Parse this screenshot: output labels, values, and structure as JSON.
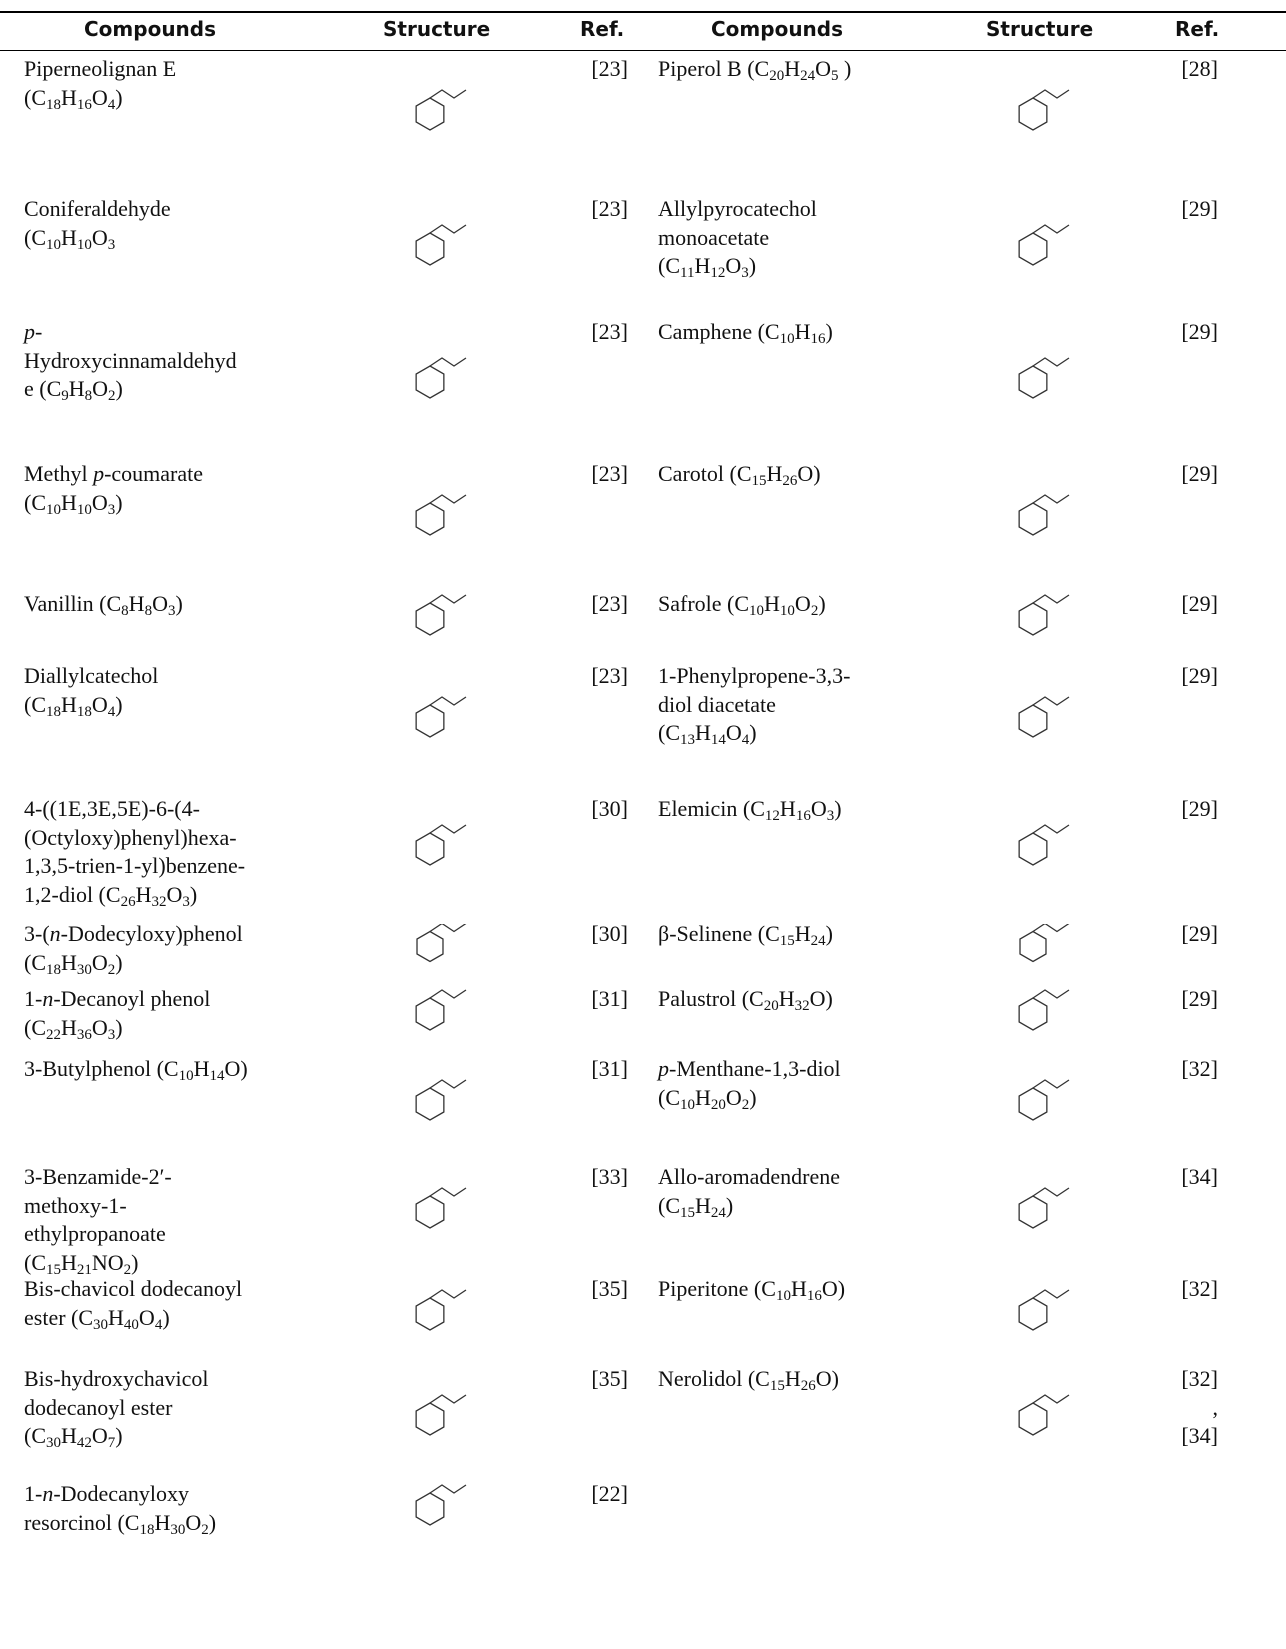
{
  "table": {
    "header": [
      "Compounds",
      "Structure",
      "Ref.",
      "Compounds",
      "Structure",
      "Ref."
    ],
    "rows": [
      [
        "Piperneolignan E\n(C18H16O4)",
        "[23]",
        "Piperol B (C20H24O5 )",
        "[28]"
      ],
      [
        "Coniferaldehyde\n(C10H10O3",
        "[23]",
        "Allylpyrocatechol\nmonoacetate\n(C11H12O3)",
        "[29]"
      ],
      [
        "p-\nHydroxycinnamaldehyd\ne (C9H8O2)",
        "[23]",
        "Camphene (C10H16)",
        "[29]"
      ],
      [
        "Methyl p-coumarate\n(C10H10O3)",
        "[23]",
        "Carotol (C15H26O)",
        "[29]"
      ],
      [
        "Vanillin (C8H8O3)",
        "[23]",
        "Safrole (C10H10O2)",
        "[29]"
      ],
      [
        "Diallylcatechol\n(C18H18O4)",
        "[23]",
        "1-Phenylpropene-3,3-\ndiol diacetate\n(C13H14O4)",
        "[29]"
      ],
      [
        "4-((1E,3E,5E)-6-(4-\n(Octyloxy)phenyl)hexa-\n1,3,5-trien-1-yl)benzene-\n1,2-diol (C26H32O3)",
        "[30]",
        "Elemicin (C12H16O3)",
        "[29]"
      ],
      [
        "3-(n-Dodecyloxy)phenol\n(C18H30O2)",
        "[30]",
        "β-Selinene (C15H24)",
        "[29]"
      ],
      [
        "1-n-Decanoyl phenol\n(C22H36O3)",
        "[31]",
        "Palustrol (C20H32O)",
        "[29]"
      ],
      [
        "3-Butylphenol (C10H14O)",
        "[31]",
        "p-Menthane-1,3-diol\n(C10H20O2)",
        "[32]"
      ],
      [
        "3-Benzamide-2′-\nmethoxy-1-\nethylpropanoate\n(C15H21NO2)",
        "[33]",
        "Allo-aromadendrene\n(C15H24)",
        "[34]"
      ],
      [
        "Bis-chavicol dodecanoyl\nester (C30H40O4)",
        "[35]",
        "Piperitone (C10H16O)",
        "[32]"
      ],
      [
        "Bis-hydroxychavicol\ndodecanoyl ester\n(C30H42O7)",
        "[35]",
        "Nerolidol (C15H26O)",
        "[32]\n,\n[34]"
      ],
      [
        "1-n-Dodecanyloxy\nresorcinol (C18H30O2)",
        "[22]"
      ]
    ]
  }
}
